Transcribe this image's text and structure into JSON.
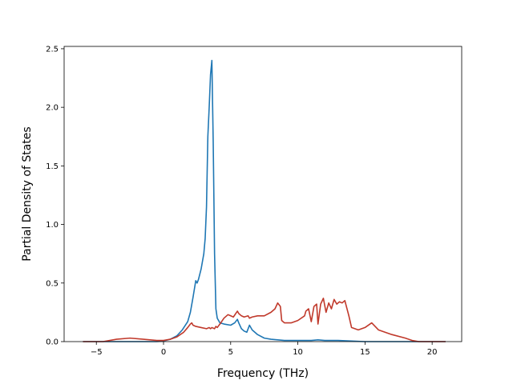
{
  "chart_data": {
    "type": "line",
    "title": "",
    "xlabel": "Frequency (THz)",
    "ylabel": "Partial Density of States",
    "xlim": [
      -7.4,
      22.2
    ],
    "ylim": [
      0,
      2.52
    ],
    "xticks": [
      -5,
      0,
      5,
      10,
      15,
      20
    ],
    "yticks": [
      0.0,
      0.5,
      1.0,
      1.5,
      2.0,
      2.5
    ],
    "xtick_labels": [
      "−5",
      "0",
      "5",
      "10",
      "15",
      "20"
    ],
    "ytick_labels": [
      "0.0",
      "0.5",
      "1.0",
      "1.5",
      "2.0",
      "2.5"
    ],
    "grid": false,
    "legend": "none",
    "series": [
      {
        "color": "#1f77b4",
        "x": [
          -6.0,
          -4.0,
          -2.0,
          -0.5,
          0.0,
          0.5,
          1.0,
          1.4,
          1.8,
          2.0,
          2.2,
          2.4,
          2.5,
          2.6,
          2.8,
          3.0,
          3.1,
          3.2,
          3.3,
          3.4,
          3.5,
          3.6,
          3.7,
          3.8,
          3.9,
          4.0,
          4.2,
          4.5,
          5.0,
          5.3,
          5.5,
          5.6,
          5.8,
          6.0,
          6.2,
          6.4,
          6.6,
          7.0,
          7.5,
          8.0,
          8.5,
          9.0,
          10.0,
          11.0,
          11.5,
          12.0,
          13.0,
          14.0,
          15.0,
          17.0,
          19.0,
          21.0
        ],
        "y": [
          0.0,
          0.0,
          0.0,
          0.0,
          0.005,
          0.02,
          0.05,
          0.1,
          0.17,
          0.25,
          0.38,
          0.52,
          0.5,
          0.53,
          0.62,
          0.75,
          0.88,
          1.15,
          1.75,
          2.0,
          2.28,
          2.4,
          1.7,
          0.75,
          0.28,
          0.2,
          0.16,
          0.15,
          0.14,
          0.16,
          0.19,
          0.16,
          0.11,
          0.09,
          0.08,
          0.14,
          0.1,
          0.06,
          0.03,
          0.02,
          0.015,
          0.01,
          0.01,
          0.01,
          0.015,
          0.01,
          0.01,
          0.005,
          0.0,
          0.0,
          0.0,
          0.0
        ]
      },
      {
        "color": "#c0392b",
        "x": [
          -6.0,
          -4.5,
          -3.5,
          -2.5,
          -1.5,
          -0.5,
          0.0,
          0.5,
          1.0,
          1.5,
          1.8,
          2.0,
          2.1,
          2.2,
          2.4,
          2.8,
          3.2,
          3.4,
          3.5,
          3.6,
          3.8,
          3.9,
          4.0,
          4.2,
          4.5,
          4.8,
          5.0,
          5.2,
          5.5,
          5.6,
          5.8,
          6.0,
          6.3,
          6.4,
          6.6,
          7.0,
          7.5,
          8.0,
          8.3,
          8.5,
          8.7,
          8.8,
          9.0,
          9.5,
          10.0,
          10.5,
          10.6,
          10.8,
          11.0,
          11.2,
          11.4,
          11.5,
          11.7,
          11.9,
          12.1,
          12.3,
          12.5,
          12.7,
          12.9,
          13.1,
          13.3,
          13.5,
          13.8,
          14.0,
          14.5,
          15.0,
          15.5,
          16.0,
          17.0,
          18.0,
          18.5,
          19.0,
          20.0,
          21.0
        ],
        "y": [
          0.0,
          0.0,
          0.02,
          0.03,
          0.02,
          0.01,
          0.01,
          0.02,
          0.04,
          0.08,
          0.12,
          0.15,
          0.16,
          0.14,
          0.13,
          0.12,
          0.11,
          0.12,
          0.11,
          0.12,
          0.11,
          0.13,
          0.12,
          0.15,
          0.2,
          0.23,
          0.22,
          0.21,
          0.26,
          0.24,
          0.22,
          0.21,
          0.22,
          0.2,
          0.21,
          0.22,
          0.22,
          0.25,
          0.28,
          0.33,
          0.3,
          0.18,
          0.16,
          0.16,
          0.18,
          0.22,
          0.26,
          0.28,
          0.17,
          0.3,
          0.32,
          0.15,
          0.32,
          0.37,
          0.25,
          0.33,
          0.28,
          0.36,
          0.32,
          0.34,
          0.33,
          0.35,
          0.22,
          0.12,
          0.1,
          0.12,
          0.16,
          0.1,
          0.06,
          0.03,
          0.01,
          0.0,
          0.0,
          0.0
        ]
      }
    ]
  }
}
